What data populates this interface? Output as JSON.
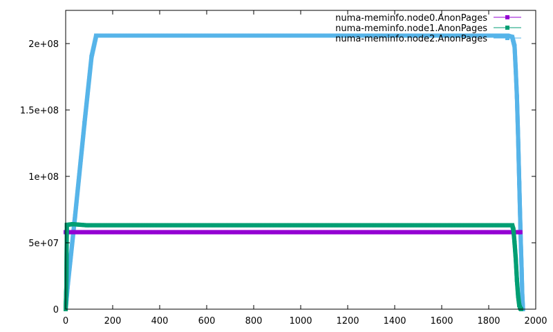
{
  "chart_data": {
    "type": "line",
    "title": "",
    "xlabel": "",
    "ylabel": "",
    "xlim": [
      0,
      2000
    ],
    "ylim": [
      0,
      225000000
    ],
    "xticks": [
      0,
      200,
      400,
      600,
      800,
      1000,
      1200,
      1400,
      1600,
      1800,
      2000
    ],
    "yticks": [
      0,
      50000000,
      100000000,
      150000000,
      200000000
    ],
    "xtick_labels": [
      "0",
      "200",
      "400",
      "600",
      "800",
      "1000",
      "1200",
      "1400",
      "1600",
      "1800",
      "2000"
    ],
    "ytick_labels": [
      "0",
      "5e+07",
      "1e+08",
      "1.5e+08",
      "2e+08"
    ],
    "grid": false,
    "legend_position": "top-right",
    "series": [
      {
        "name": "numa-meminfo.node0.AnonPages",
        "color": "#9400d3",
        "marker": "square",
        "points": [
          [
            0,
            58000000
          ],
          [
            3,
            58000000
          ],
          [
            1930,
            58000000
          ],
          [
            1935,
            58000000
          ]
        ]
      },
      {
        "name": "numa-meminfo.node1.AnonPages",
        "color": "#009e73",
        "marker": "square",
        "points": [
          [
            0,
            0
          ],
          [
            3,
            17000000
          ],
          [
            5,
            63500000
          ],
          [
            30,
            64000000
          ],
          [
            90,
            63200000
          ],
          [
            1900,
            63200000
          ],
          [
            1905,
            60000000
          ],
          [
            1910,
            50000000
          ],
          [
            1915,
            38000000
          ],
          [
            1920,
            22000000
          ],
          [
            1925,
            10000000
          ],
          [
            1930,
            3000000
          ],
          [
            1935,
            500000
          ],
          [
            1938,
            0
          ]
        ]
      },
      {
        "name": "numa-meminfo.node2.AnonPages",
        "color": "#56b4e9",
        "marker": "square",
        "points": [
          [
            0,
            0
          ],
          [
            10,
            20000000
          ],
          [
            40,
            70000000
          ],
          [
            80,
            140000000
          ],
          [
            110,
            190000000
          ],
          [
            130,
            206000000
          ],
          [
            1880,
            206000000
          ],
          [
            1900,
            205000000
          ],
          [
            1910,
            198000000
          ],
          [
            1915,
            180000000
          ],
          [
            1920,
            160000000
          ],
          [
            1925,
            130000000
          ],
          [
            1930,
            95000000
          ],
          [
            1935,
            60000000
          ],
          [
            1940,
            30000000
          ],
          [
            1943,
            10000000
          ],
          [
            1946,
            0
          ]
        ]
      }
    ]
  }
}
